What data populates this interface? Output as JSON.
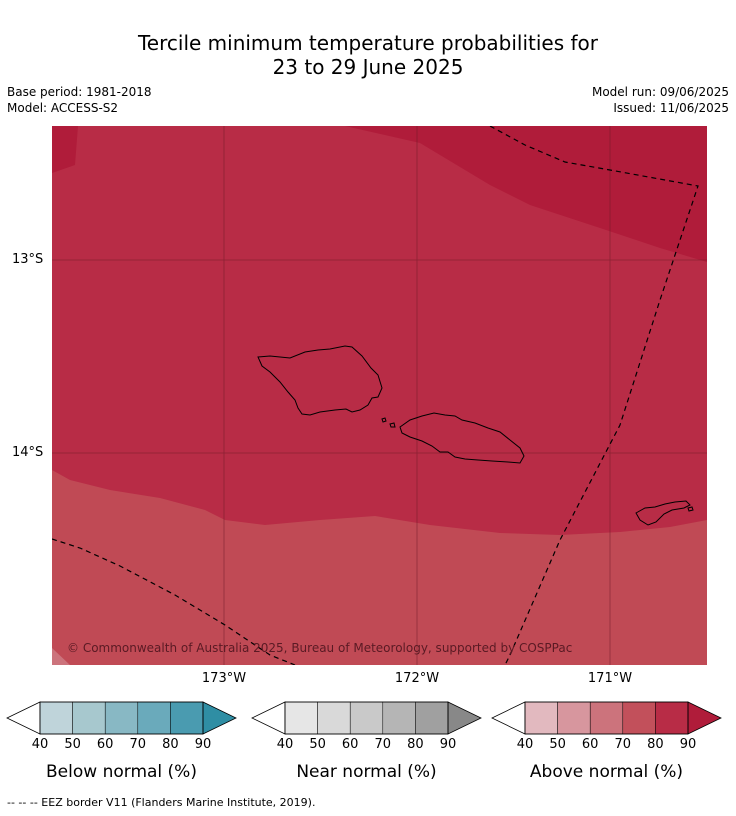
{
  "title": {
    "line1": "Tercile minimum temperature probabilities for",
    "line2": "23 to 29 June 2025"
  },
  "meta": {
    "base_period": "Base period: 1981-2018",
    "model": "Model: ACCESS-S2",
    "model_run": "Model run: 09/06/2025",
    "issued": "Issued: 11/06/2025"
  },
  "map": {
    "lat_labels": [
      "13°S",
      "14°S"
    ],
    "lon_labels": [
      "173°W",
      "172°W",
      "171°W"
    ],
    "copyright": "© Commonwealth of Australia 2025, Bureau of Meteorology, supported by COSPPac",
    "colors": {
      "above_90": "#b01c3a",
      "above_80": "#b82c46",
      "above_70": "#c04a55"
    }
  },
  "colorbars": [
    {
      "title": "Below normal (%)",
      "ticks": [
        "40",
        "50",
        "60",
        "70",
        "80",
        "90"
      ],
      "colors": [
        "#bfd4da",
        "#a7c8ce",
        "#88b8c4",
        "#6aaabb",
        "#4a9bb0",
        "#2f8ea4"
      ]
    },
    {
      "title": "Near normal (%)",
      "ticks": [
        "40",
        "50",
        "60",
        "70",
        "80",
        "90"
      ],
      "colors": [
        "#e6e6e6",
        "#d9d9d9",
        "#c9c9c9",
        "#b5b5b5",
        "#a0a0a0",
        "#888888"
      ]
    },
    {
      "title": "Above normal (%)",
      "ticks": [
        "40",
        "50",
        "60",
        "70",
        "80",
        "90"
      ],
      "colors": [
        "#e2b9bf",
        "#d7969e",
        "#cc737c",
        "#c2505b",
        "#b82c46",
        "#b01c3a"
      ]
    }
  ],
  "footnote": "--  --  -- EEZ border V11 (Flanders Marine Institute, 2019)."
}
